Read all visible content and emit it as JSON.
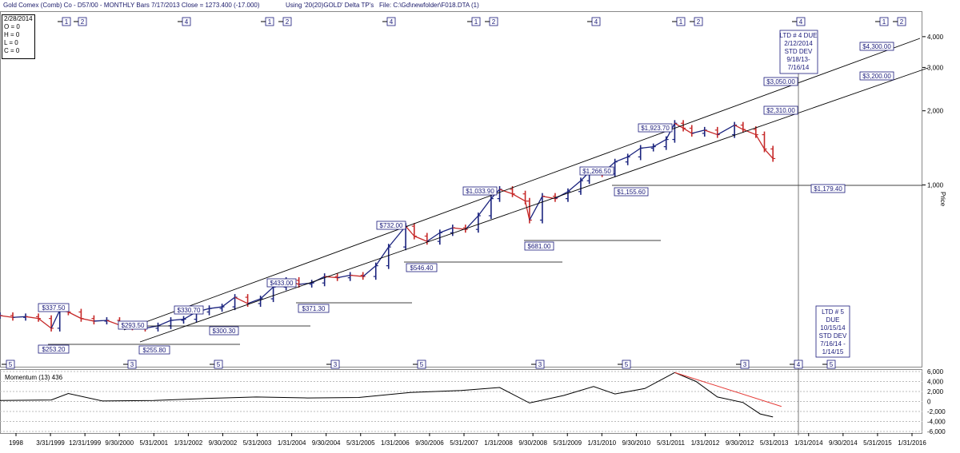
{
  "header": {
    "title": "Gold Comex (Comb) Co - D57/00  - MONTHLY Bars  7/17/2013 Close = 1273.400  (-17.000)",
    "using": "Using '20(20)GOLD' Delta TP's",
    "file": "File: C:\\Gd\\newfolder\\F018.DTA  (1)"
  },
  "ohlc_box": {
    "date": "2/28/2014",
    "o": "O = 0",
    "h": "H = 0",
    "l": "L = 0",
    "c": "C = 0"
  },
  "momentum_label": "Momentum (13)  436",
  "price_axis_title": "Price",
  "colors": {
    "up": "#1a237e",
    "down": "#c62828",
    "text": "#1a1a7a",
    "trend": "#e53935"
  },
  "chart_data": [
    {
      "type": "line",
      "title": "",
      "ylabel": "Price",
      "yscale": "log",
      "ylim": [
        200,
        5000
      ],
      "xlim": [
        "1998-06-01",
        "2016-06-01"
      ],
      "y_ticks": [
        1000,
        2000,
        3000,
        4000
      ],
      "y_tick_labels": [
        "1,000",
        "2,000",
        "3,000",
        "4,000"
      ],
      "x_tick_labels": [
        "1998",
        "3/31/1999",
        "12/31/1999",
        "9/30/2000",
        "5/31/2001",
        "1/31/2002",
        "9/30/2002",
        "5/31/2003",
        "1/31/2004",
        "9/30/2004",
        "5/31/2005",
        "1/31/2006",
        "9/30/2006",
        "5/31/2007",
        "1/31/2008",
        "9/30/2008",
        "5/31/2009",
        "1/31/2010",
        "9/30/2010",
        "5/31/2011",
        "1/31/2012",
        "9/30/2012",
        "5/31/2013",
        "1/31/2014",
        "9/30/2014",
        "5/31/2015",
        "1/31/2016"
      ],
      "series": [
        {
          "x": [
            "1998-06",
            "1998-09",
            "1998-12",
            "1999-03",
            "1999-06",
            "1999-08",
            "1999-10",
            "2000-01",
            "2000-04",
            "2000-07",
            "2000-10",
            "2001-01",
            "2001-04",
            "2001-07",
            "2001-10",
            "2002-01",
            "2002-04",
            "2002-07",
            "2002-10",
            "2003-01",
            "2003-04",
            "2003-07",
            "2003-10",
            "2004-01",
            "2004-04",
            "2004-07",
            "2004-10",
            "2005-01",
            "2005-04",
            "2005-07",
            "2005-10",
            "2006-01",
            "2006-05",
            "2006-07",
            "2006-10",
            "2007-01",
            "2007-04",
            "2007-07",
            "2007-10",
            "2008-01",
            "2008-03",
            "2008-06",
            "2008-09",
            "2008-10",
            "2009-01",
            "2009-04",
            "2009-07",
            "2009-10",
            "2009-12",
            "2010-03",
            "2010-06",
            "2010-09",
            "2010-12",
            "2011-03",
            "2011-06",
            "2011-08",
            "2011-10",
            "2011-12",
            "2012-03",
            "2012-06",
            "2012-10",
            "2012-12",
            "2013-03",
            "2013-05",
            "2013-07"
          ],
          "y": [
            295,
            290,
            292,
            287,
            262,
            310,
            305,
            287,
            280,
            282,
            270,
            265,
            262,
            268,
            282,
            285,
            305,
            315,
            320,
            350,
            330,
            345,
            385,
            410,
            395,
            400,
            425,
            420,
            430,
            425,
            470,
            560,
            680,
            620,
            590,
            640,
            670,
            660,
            750,
            880,
            960,
            920,
            860,
            720,
            900,
            880,
            940,
            1040,
            1130,
            1110,
            1240,
            1300,
            1410,
            1430,
            1530,
            1780,
            1700,
            1620,
            1670,
            1600,
            1750,
            1680,
            1600,
            1400,
            1280
          ]
        }
      ],
      "annotations": [
        "$337.50",
        "$253.20",
        "$293.50",
        "$255.80",
        "$330.70",
        "$300.30",
        "$433.00",
        "$371.30",
        "$732.00",
        "$546.40",
        "$1,033.90",
        "$681.00",
        "$1,266.50",
        "$1,155.60",
        "$1,923.70",
        "$1,179.40",
        "$3,050.00",
        "$2,310.00",
        "$4,300.00",
        "$3,200.00"
      ],
      "notes": [
        "LTD # 4 DUE",
        "2/12/2014",
        "STD DEV",
        "9/18/13-",
        "7/16/14",
        "LTD # 5",
        "DUE",
        "10/15/14",
        "STD DEV",
        "7/16/14 -",
        "1/14/15"
      ],
      "cycle_markers_top": [
        "1",
        "2",
        "4",
        "1",
        "2",
        "4",
        "1",
        "2",
        "4",
        "1",
        "2",
        "4",
        "1",
        "2"
      ],
      "cycle_markers_bottom": [
        "5",
        "3",
        "5",
        "3",
        "5",
        "3",
        "5",
        "3",
        "4",
        "5"
      ]
    },
    {
      "type": "line",
      "title": "Momentum (13)  436",
      "ylim": [
        -6000,
        6000
      ],
      "y_ticks": [
        -6000,
        -4000,
        -2000,
        0,
        2000,
        4000,
        6000
      ],
      "y_tick_labels": [
        "-6,000",
        "-4,000",
        "-2,000",
        "0",
        "2,000",
        "4,000",
        "6,000"
      ],
      "series": [
        {
          "x": [
            "1998-06",
            "1999-06",
            "1999-10",
            "2000-06",
            "2001-06",
            "2002-06",
            "2003-06",
            "2004-06",
            "2005-06",
            "2006-06",
            "2007-06",
            "2008-03",
            "2008-10",
            "2009-06",
            "2010-01",
            "2010-06",
            "2011-01",
            "2011-08",
            "2012-01",
            "2012-06",
            "2012-12",
            "2013-04",
            "2013-07"
          ],
          "y": [
            200,
            300,
            1600,
            100,
            200,
            600,
            900,
            700,
            800,
            1800,
            2200,
            2800,
            -300,
            1200,
            3000,
            1500,
            2600,
            5800,
            4000,
            900,
            -200,
            -2500,
            -3100
          ]
        }
      ]
    }
  ]
}
